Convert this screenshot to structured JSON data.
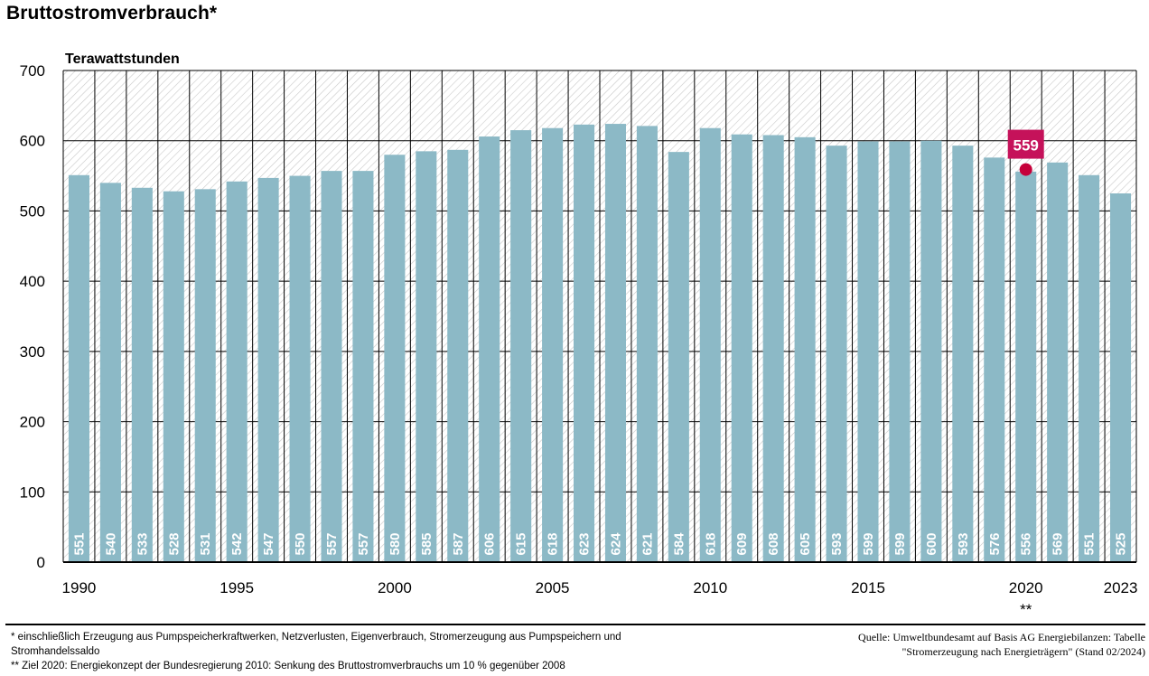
{
  "title": "Bruttostromverbrauch*",
  "chart_data": {
    "type": "bar",
    "ylabel": "Terawattstunden",
    "ylim": [
      0,
      700
    ],
    "yticks": [
      0,
      100,
      200,
      300,
      400,
      500,
      600,
      700
    ],
    "categories": [
      "1990",
      "1991",
      "1992",
      "1993",
      "1994",
      "1995",
      "1996",
      "1997",
      "1998",
      "1999",
      "2000",
      "2001",
      "2002",
      "2003",
      "2004",
      "2005",
      "2006",
      "2007",
      "2008",
      "2009",
      "2010",
      "2011",
      "2012",
      "2013",
      "2014",
      "2015",
      "2016",
      "2017",
      "2018",
      "2019",
      "2020",
      "2021",
      "2022",
      "2023"
    ],
    "x_tick_labels": [
      {
        "category": "1990",
        "label": "1990"
      },
      {
        "category": "1995",
        "label": "1995"
      },
      {
        "category": "2000",
        "label": "2000"
      },
      {
        "category": "2005",
        "label": "2005"
      },
      {
        "category": "2010",
        "label": "2010"
      },
      {
        "category": "2015",
        "label": "2015"
      },
      {
        "category": "2020",
        "label": "2020"
      },
      {
        "category": "2023",
        "label": "2023"
      }
    ],
    "values": [
      551,
      540,
      533,
      528,
      531,
      542,
      547,
      550,
      557,
      557,
      580,
      585,
      587,
      606,
      615,
      618,
      623,
      624,
      621,
      584,
      618,
      609,
      608,
      605,
      593,
      599,
      599,
      600,
      593,
      576,
      556,
      569,
      551,
      525
    ],
    "target": {
      "category": "2020",
      "value": 559,
      "label": "559",
      "note": "**"
    },
    "grid": true,
    "colors": {
      "bar": "#8cb9c6",
      "bar_label": "#ffffff",
      "target": "#c5003a",
      "target_label_bg": "#c5125a",
      "axis": "#000000"
    }
  },
  "footnotes": [
    "* einschließlich Erzeugung aus Pumpspeicherkraftwerken, Netzverlusten, Eigenverbrauch, Stromerzeugung aus Pumpspeichern und Stromhandelssaldo",
    "** Ziel 2020: Energiekonzept der Bundesregierung 2010: Senkung des Bruttostromverbrauchs um 10 % gegenüber 2008"
  ],
  "source": "Quelle: Umweltbundesamt auf Basis AG Energiebilanzen: Tabelle \"Stromerzeugung nach Energieträgern\" (Stand 02/2024)"
}
